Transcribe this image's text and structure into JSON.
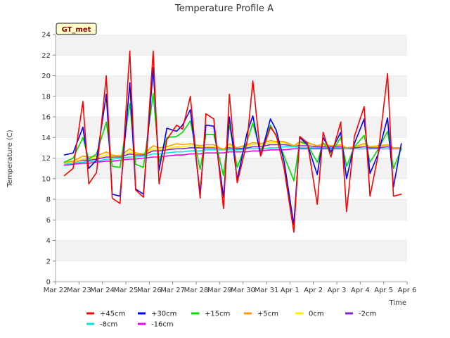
{
  "chart_data": {
    "type": "line",
    "title": "Temperature Profile A",
    "xlabel": "Time",
    "ylabel": "Temperature (C)",
    "badge": "GT_met",
    "ylim": [
      0,
      24
    ],
    "yticks": [
      0,
      2,
      4,
      6,
      8,
      10,
      12,
      14,
      16,
      18,
      20,
      22,
      24
    ],
    "xlim": [
      "2024-03-22",
      "2024-04-06"
    ],
    "xticks": [
      "Mar 22",
      "Mar 23",
      "Mar 24",
      "Mar 25",
      "Mar 26",
      "Mar 27",
      "Mar 28",
      "Mar 29",
      "Mar 30",
      "Mar 31",
      "Apr 1",
      "Apr 2",
      "Apr 3",
      "Apr 4",
      "Apr 5",
      "Apr 6"
    ],
    "grid": "horizontal bands",
    "legend_position": "bottom",
    "x": [
      "2024-03-22 09:00",
      "2024-03-22 18:00",
      "2024-03-23 04:00",
      "2024-03-23 10:00",
      "2024-03-23 18:00",
      "2024-03-24 04:00",
      "2024-03-24 10:00",
      "2024-03-24 18:00",
      "2024-03-25 04:00",
      "2024-03-25 10:00",
      "2024-03-25 18:00",
      "2024-03-26 04:00",
      "2024-03-26 10:00",
      "2024-03-26 18:00",
      "2024-03-27 04:00",
      "2024-03-27 10:00",
      "2024-03-27 18:00",
      "2024-03-28 04:00",
      "2024-03-28 10:00",
      "2024-03-28 18:00",
      "2024-03-29 04:00",
      "2024-03-29 10:00",
      "2024-03-29 18:00",
      "2024-03-30 04:00",
      "2024-03-30 10:00",
      "2024-03-30 18:00",
      "2024-03-31 04:00",
      "2024-03-31 10:00",
      "2024-03-31 18:00",
      "2024-04-01 04:00",
      "2024-04-01 10:00",
      "2024-04-01 18:00",
      "2024-04-02 04:00",
      "2024-04-02 10:00",
      "2024-04-02 18:00",
      "2024-04-03 04:00",
      "2024-04-03 10:00",
      "2024-04-03 18:00",
      "2024-04-04 04:00",
      "2024-04-04 10:00",
      "2024-04-04 18:00",
      "2024-04-05 04:00",
      "2024-04-05 10:00",
      "2024-04-05 18:00"
    ],
    "series": [
      {
        "name": "+45cm",
        "color": "#ff0000",
        "values": [
          10.3,
          11.0,
          17.5,
          9.5,
          10.6,
          20.0,
          8.1,
          7.6,
          22.4,
          8.9,
          8.2,
          22.4,
          9.5,
          13.8,
          15.2,
          14.8,
          18.0,
          8.1,
          16.3,
          15.8,
          7.1,
          18.2,
          9.6,
          13.5,
          19.5,
          12.2,
          15.0,
          14.2,
          11.0,
          4.8,
          14.1,
          13.5,
          7.5,
          14.5,
          12.1,
          15.5,
          6.8,
          14.1,
          17.0,
          8.3,
          12.1,
          20.2,
          8.3,
          8.5
        ]
      },
      {
        "name": "+30cm",
        "color": "#0000ff",
        "values": [
          12.3,
          12.5,
          15.0,
          11.0,
          11.8,
          18.2,
          8.5,
          8.3,
          19.3,
          9.0,
          8.5,
          20.8,
          10.8,
          14.9,
          14.6,
          15.2,
          16.7,
          8.6,
          15.2,
          15.1,
          8.2,
          16.0,
          9.9,
          14.4,
          16.1,
          12.2,
          15.8,
          14.7,
          11.7,
          5.5,
          14.0,
          13.3,
          10.4,
          14.0,
          12.6,
          14.5,
          10.0,
          13.4,
          15.8,
          10.5,
          12.3,
          15.9,
          9.2,
          13.4
        ]
      },
      {
        "name": "+15cm",
        "color": "#00dd00",
        "values": [
          11.6,
          12.0,
          14.0,
          11.9,
          12.4,
          15.5,
          11.2,
          11.1,
          17.3,
          11.4,
          11.1,
          18.3,
          11.6,
          14.0,
          14.1,
          14.5,
          15.6,
          10.9,
          14.3,
          14.3,
          10.3,
          15.2,
          11.1,
          13.6,
          15.4,
          12.6,
          15.2,
          14.1,
          12.2,
          9.8,
          13.6,
          13.3,
          11.6,
          13.5,
          12.5,
          14.0,
          11.2,
          13.1,
          14.2,
          11.6,
          12.8,
          14.6,
          11.0,
          12.9
        ]
      },
      {
        "name": "+5cm",
        "color": "#ff9900",
        "values": [
          11.6,
          11.7,
          12.2,
          12.1,
          12.2,
          12.6,
          12.3,
          12.2,
          12.9,
          12.5,
          12.4,
          13.2,
          13.0,
          13.1,
          13.4,
          13.3,
          13.4,
          13.2,
          13.3,
          13.3,
          12.8,
          13.4,
          13.0,
          13.3,
          13.5,
          13.4,
          13.7,
          13.6,
          13.6,
          13.2,
          13.6,
          13.5,
          13.2,
          13.4,
          13.2,
          13.3,
          13.0,
          13.1,
          13.4,
          13.1,
          13.2,
          13.3,
          13.0,
          13.0
        ]
      },
      {
        "name": "0cm",
        "color": "#ffee00",
        "values": [
          11.5,
          11.6,
          11.9,
          11.9,
          12.0,
          12.3,
          12.2,
          12.2,
          12.6,
          12.4,
          12.4,
          12.9,
          12.8,
          12.9,
          13.1,
          13.1,
          13.2,
          13.1,
          13.1,
          13.1,
          12.9,
          13.2,
          13.0,
          13.2,
          13.3,
          13.3,
          13.5,
          13.5,
          13.5,
          13.2,
          13.4,
          13.4,
          13.2,
          13.3,
          13.2,
          13.2,
          13.0,
          13.1,
          13.2,
          13.1,
          13.1,
          13.2,
          13.0,
          13.0
        ]
      },
      {
        "name": "-2cm",
        "color": "#8822cc",
        "values": [
          11.5,
          11.6,
          11.8,
          11.8,
          11.9,
          12.1,
          12.1,
          12.1,
          12.4,
          12.3,
          12.3,
          12.7,
          12.7,
          12.8,
          12.9,
          12.9,
          13.0,
          13.0,
          13.0,
          13.0,
          12.9,
          13.0,
          12.9,
          13.0,
          13.1,
          13.1,
          13.3,
          13.3,
          13.3,
          13.2,
          13.2,
          13.2,
          13.1,
          13.1,
          13.1,
          13.1,
          13.0,
          13.0,
          13.1,
          13.0,
          13.0,
          13.1,
          13.0,
          13.0
        ]
      },
      {
        "name": "-8cm",
        "color": "#00e5e5",
        "values": [
          11.4,
          11.5,
          11.6,
          11.7,
          11.7,
          11.9,
          11.9,
          12.0,
          12.1,
          12.1,
          12.2,
          12.4,
          12.4,
          12.5,
          12.6,
          12.6,
          12.7,
          12.7,
          12.8,
          12.8,
          12.8,
          12.8,
          12.8,
          12.9,
          12.9,
          12.9,
          13.0,
          13.0,
          13.1,
          13.1,
          13.0,
          13.0,
          13.0,
          13.0,
          13.0,
          13.0,
          12.9,
          12.9,
          12.9,
          12.9,
          12.9,
          12.9,
          12.9,
          12.9
        ]
      },
      {
        "name": "-16cm",
        "color": "#ee00ee",
        "values": [
          11.3,
          11.4,
          11.5,
          11.5,
          11.6,
          11.7,
          11.7,
          11.8,
          11.9,
          11.9,
          12.0,
          12.1,
          12.1,
          12.2,
          12.3,
          12.3,
          12.4,
          12.4,
          12.5,
          12.5,
          12.5,
          12.6,
          12.6,
          12.6,
          12.7,
          12.7,
          12.8,
          12.8,
          12.8,
          12.9,
          12.9,
          12.9,
          12.9,
          12.9,
          12.9,
          12.9,
          12.9,
          12.9,
          12.9,
          12.9,
          12.9,
          12.9,
          12.9,
          12.9
        ]
      }
    ]
  }
}
